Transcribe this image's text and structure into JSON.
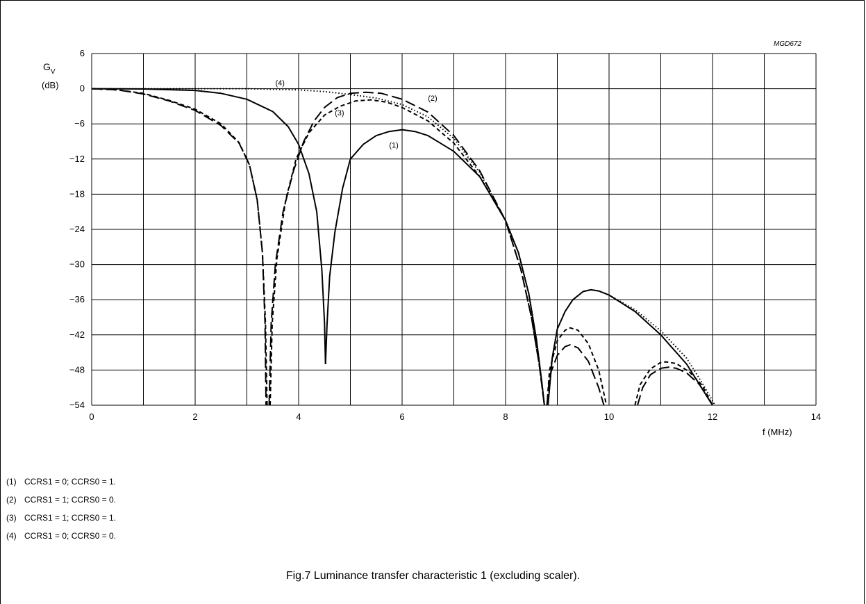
{
  "figure_id": "MGD672",
  "caption": "Fig.7  Luminance transfer characteristic 1 (excluding scaler).",
  "legend": [
    {
      "num": "(1)",
      "text": "CCRS1 = 0; CCRS0 = 1."
    },
    {
      "num": "(2)",
      "text": "CCRS1 = 1; CCRS0 = 0."
    },
    {
      "num": "(3)",
      "text": "CCRS1 = 1; CCRS0 = 1."
    },
    {
      "num": "(4)",
      "text": "CCRS1 = 0; CCRS0 = 0."
    }
  ],
  "chart_data": {
    "type": "line",
    "title": "",
    "xlabel": "f  (MHz)",
    "ylabel_main": "G",
    "ylabel_sub": "V",
    "ylabel_unit": "(dB)",
    "xlim": [
      0,
      14
    ],
    "ylim": [
      -54,
      6
    ],
    "x_ticks": [
      "0",
      "2",
      "4",
      "6",
      "8",
      "10",
      "12",
      "14"
    ],
    "x_tick_values": [
      0,
      2,
      4,
      6,
      8,
      10,
      12,
      14
    ],
    "y_ticks": [
      "6",
      "0",
      "−6",
      "−12",
      "−18",
      "−24",
      "−30",
      "−36",
      "−42",
      "−48",
      "−54"
    ],
    "y_tick_values": [
      6,
      0,
      -6,
      -12,
      -18,
      -24,
      -30,
      -36,
      -42,
      -48,
      -54
    ],
    "grid": true,
    "series": [
      {
        "name": "(1)",
        "style": "solid",
        "segments": [
          [
            [
              0,
              0
            ],
            [
              1,
              -0.05
            ],
            [
              2,
              -0.3
            ],
            [
              2.5,
              -0.8
            ],
            [
              3,
              -1.8
            ],
            [
              3.5,
              -3.9
            ],
            [
              3.8,
              -6.5
            ],
            [
              4.0,
              -9.5
            ],
            [
              4.2,
              -14.5
            ],
            [
              4.35,
              -21
            ],
            [
              4.45,
              -31
            ],
            [
              4.5,
              -40
            ],
            [
              4.52,
              -47
            ]
          ],
          [
            [
              4.52,
              -47
            ],
            [
              4.55,
              -40
            ],
            [
              4.6,
              -32
            ],
            [
              4.7,
              -24.5
            ],
            [
              4.85,
              -17
            ],
            [
              5,
              -12
            ],
            [
              5.25,
              -9.5
            ],
            [
              5.5,
              -8
            ],
            [
              5.75,
              -7.3
            ],
            [
              6,
              -7
            ],
            [
              6.25,
              -7.3
            ],
            [
              6.5,
              -8
            ],
            [
              7,
              -10.7
            ],
            [
              7.5,
              -15
            ],
            [
              8,
              -22.5
            ],
            [
              8.25,
              -28
            ],
            [
              8.45,
              -35
            ],
            [
              8.6,
              -43
            ],
            [
              8.7,
              -50
            ],
            [
              8.75,
              -54
            ]
          ],
          [
            [
              8.82,
              -54
            ],
            [
              8.9,
              -46
            ],
            [
              9.0,
              -41
            ],
            [
              9.15,
              -38
            ],
            [
              9.3,
              -36
            ],
            [
              9.5,
              -34.6
            ],
            [
              9.65,
              -34.3
            ],
            [
              9.8,
              -34.5
            ],
            [
              10,
              -35.2
            ],
            [
              10.5,
              -38
            ],
            [
              11,
              -42
            ],
            [
              11.5,
              -47
            ],
            [
              11.75,
              -50.5
            ],
            [
              12,
              -54
            ]
          ]
        ]
      },
      {
        "name": "(2)",
        "style": "longdash",
        "segments": [
          [
            [
              0,
              0
            ],
            [
              0.5,
              -0.2
            ],
            [
              1,
              -0.9
            ],
            [
              1.5,
              -2.1
            ],
            [
              2,
              -3.7
            ],
            [
              2.5,
              -6.3
            ],
            [
              2.85,
              -9.3
            ],
            [
              3.05,
              -13
            ],
            [
              3.2,
              -19
            ],
            [
              3.3,
              -28
            ],
            [
              3.35,
              -40
            ],
            [
              3.37,
              -54
            ]
          ],
          [
            [
              3.43,
              -54
            ],
            [
              3.47,
              -40
            ],
            [
              3.55,
              -30
            ],
            [
              3.7,
              -21
            ],
            [
              3.9,
              -14
            ],
            [
              4.1,
              -9
            ],
            [
              4.3,
              -5.5
            ],
            [
              4.5,
              -3.2
            ],
            [
              4.75,
              -1.5
            ],
            [
              5,
              -0.8
            ],
            [
              5.3,
              -0.6
            ],
            [
              5.6,
              -0.8
            ],
            [
              6,
              -1.8
            ],
            [
              6.5,
              -4
            ],
            [
              7,
              -8
            ],
            [
              7.5,
              -14
            ],
            [
              8,
              -22.5
            ],
            [
              8.3,
              -31
            ],
            [
              8.5,
              -39
            ],
            [
              8.65,
              -47
            ],
            [
              8.75,
              -54
            ]
          ],
          [
            [
              8.8,
              -54
            ],
            [
              8.85,
              -49
            ],
            [
              9,
              -45.5
            ],
            [
              9.15,
              -44
            ],
            [
              9.25,
              -43.7
            ],
            [
              9.4,
              -44.2
            ],
            [
              9.6,
              -46.5
            ],
            [
              9.8,
              -51
            ],
            [
              9.9,
              -54
            ]
          ],
          [
            [
              10.55,
              -54
            ],
            [
              10.65,
              -51
            ],
            [
              10.8,
              -48.8
            ],
            [
              11,
              -47.7
            ],
            [
              11.15,
              -47.5
            ],
            [
              11.3,
              -47.7
            ],
            [
              11.5,
              -48.5
            ],
            [
              11.75,
              -50.5
            ],
            [
              12,
              -54
            ]
          ]
        ]
      },
      {
        "name": "(3)",
        "style": "shortdash",
        "segments": [
          [
            [
              0,
              0
            ],
            [
              0.5,
              -0.2
            ],
            [
              1,
              -0.8
            ],
            [
              1.5,
              -2
            ],
            [
              2,
              -3.5
            ],
            [
              2.5,
              -6
            ],
            [
              2.85,
              -9.2
            ],
            [
              3.05,
              -13
            ],
            [
              3.2,
              -19
            ],
            [
              3.3,
              -28
            ],
            [
              3.36,
              -40
            ],
            [
              3.39,
              -54
            ]
          ],
          [
            [
              3.45,
              -54
            ],
            [
              3.49,
              -40
            ],
            [
              3.58,
              -29
            ],
            [
              3.75,
              -19
            ],
            [
              3.95,
              -12
            ],
            [
              4.2,
              -7.5
            ],
            [
              4.5,
              -4.5
            ],
            [
              4.8,
              -3
            ],
            [
              5.1,
              -2.1
            ],
            [
              5.4,
              -1.9
            ],
            [
              5.7,
              -2.3
            ],
            [
              6,
              -3.2
            ],
            [
              6.5,
              -5.5
            ],
            [
              7,
              -9.3
            ],
            [
              7.5,
              -15
            ],
            [
              8,
              -22.5
            ],
            [
              8.3,
              -31
            ],
            [
              8.5,
              -39
            ],
            [
              8.65,
              -47
            ],
            [
              8.75,
              -54
            ]
          ],
          [
            [
              8.8,
              -54
            ],
            [
              8.85,
              -48
            ],
            [
              9,
              -43
            ],
            [
              9.15,
              -41.2
            ],
            [
              9.25,
              -40.8
            ],
            [
              9.4,
              -41.2
            ],
            [
              9.6,
              -43.5
            ],
            [
              9.8,
              -48
            ],
            [
              9.95,
              -54
            ]
          ],
          [
            [
              10.5,
              -54
            ],
            [
              10.6,
              -50.5
            ],
            [
              10.8,
              -47.8
            ],
            [
              11,
              -46.7
            ],
            [
              11.1,
              -46.6
            ],
            [
              11.3,
              -46.9
            ],
            [
              11.55,
              -48.3
            ],
            [
              11.8,
              -50.6
            ],
            [
              12,
              -54
            ]
          ]
        ]
      },
      {
        "name": "(4)",
        "style": "dotted",
        "segments": [
          [
            [
              0,
              0
            ],
            [
              2,
              0
            ],
            [
              3,
              0
            ],
            [
              4,
              -0.2
            ],
            [
              4.5,
              -0.5
            ],
            [
              5,
              -1
            ],
            [
              5.5,
              -1.6
            ],
            [
              6,
              -2.7
            ],
            [
              6.5,
              -4.8
            ],
            [
              7,
              -8.5
            ],
            [
              7.5,
              -14.3
            ],
            [
              8,
              -22.5
            ],
            [
              8.25,
              -28
            ],
            [
              8.45,
              -35
            ],
            [
              8.6,
              -43
            ],
            [
              8.7,
              -50
            ],
            [
              8.75,
              -54
            ]
          ],
          [
            [
              8.82,
              -54
            ],
            [
              8.9,
              -46
            ],
            [
              9.0,
              -41
            ],
            [
              9.15,
              -38
            ],
            [
              9.3,
              -36
            ],
            [
              9.5,
              -34.6
            ],
            [
              9.65,
              -34.3
            ],
            [
              9.8,
              -34.5
            ],
            [
              10,
              -35.2
            ],
            [
              10.5,
              -37.7
            ],
            [
              11,
              -41.3
            ],
            [
              11.5,
              -46
            ],
            [
              11.8,
              -50.2
            ],
            [
              12.05,
              -54
            ]
          ]
        ]
      }
    ],
    "curve_labels": [
      {
        "text": "(4)",
        "x": 3.55,
        "y": 1.0
      },
      {
        "text": "(2)",
        "x": 6.5,
        "y": -1.6
      },
      {
        "text": "(3)",
        "x": 4.7,
        "y": -4.1
      },
      {
        "text": "(1)",
        "x": 5.75,
        "y": -9.6
      }
    ]
  }
}
